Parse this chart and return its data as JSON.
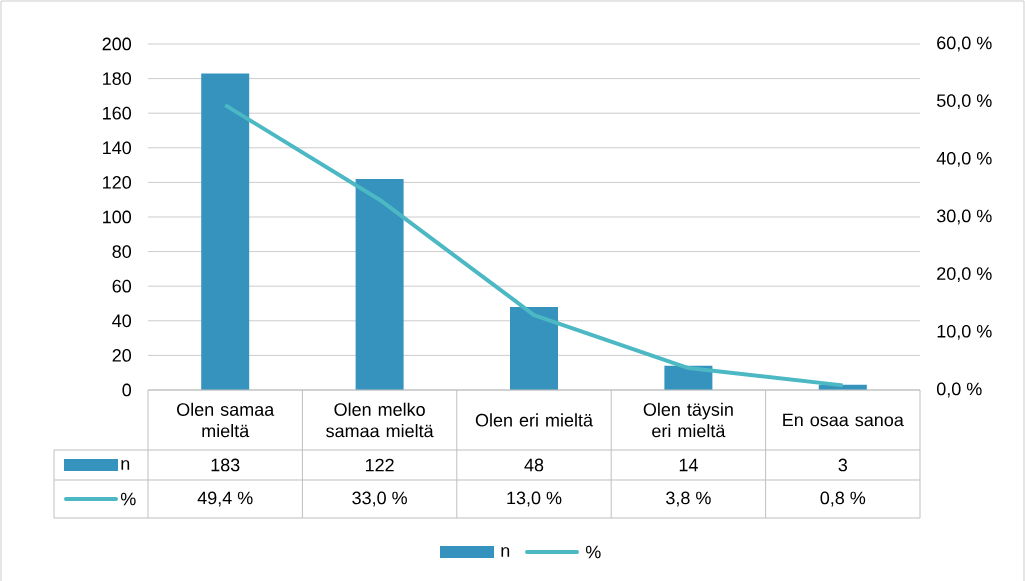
{
  "chart_data": {
    "type": "bar",
    "categories": [
      "Olen samaa mieltä",
      "Olen melko samaa mieltä",
      "Olen eri mieltä",
      "Olen täysin eri mieltä",
      "En osaa sanoa"
    ],
    "series": [
      {
        "name": "n",
        "color": "#3593bd",
        "values": [
          183,
          122,
          48,
          14,
          3
        ],
        "value_labels": [
          "183",
          "122",
          "48",
          "14",
          "3"
        ]
      },
      {
        "name": "%",
        "type": "line",
        "axis": "y2",
        "color": "#4bb8c4",
        "values": [
          49.4,
          33.0,
          13.0,
          3.8,
          0.8
        ],
        "value_labels": [
          "49,4 %",
          "33,0 %",
          "13,0 %",
          "3,8 %",
          "0,8 %"
        ]
      }
    ],
    "ylim": [
      0,
      200
    ],
    "yticks": [
      0,
      20,
      40,
      60,
      80,
      100,
      120,
      140,
      160,
      180,
      200
    ],
    "y2lim": [
      0,
      60
    ],
    "y2ticks": [
      {
        "value": 0,
        "label": "0,0 %"
      },
      {
        "value": 10,
        "label": "10,0 %"
      },
      {
        "value": 20,
        "label": "20,0 %"
      },
      {
        "value": 30,
        "label": "30,0 %"
      },
      {
        "value": 40,
        "label": "40,0 %"
      },
      {
        "value": 50,
        "label": "50,0 %"
      },
      {
        "value": 60,
        "label": "60,0 %"
      }
    ],
    "grid": "y",
    "legend": "bottom"
  }
}
